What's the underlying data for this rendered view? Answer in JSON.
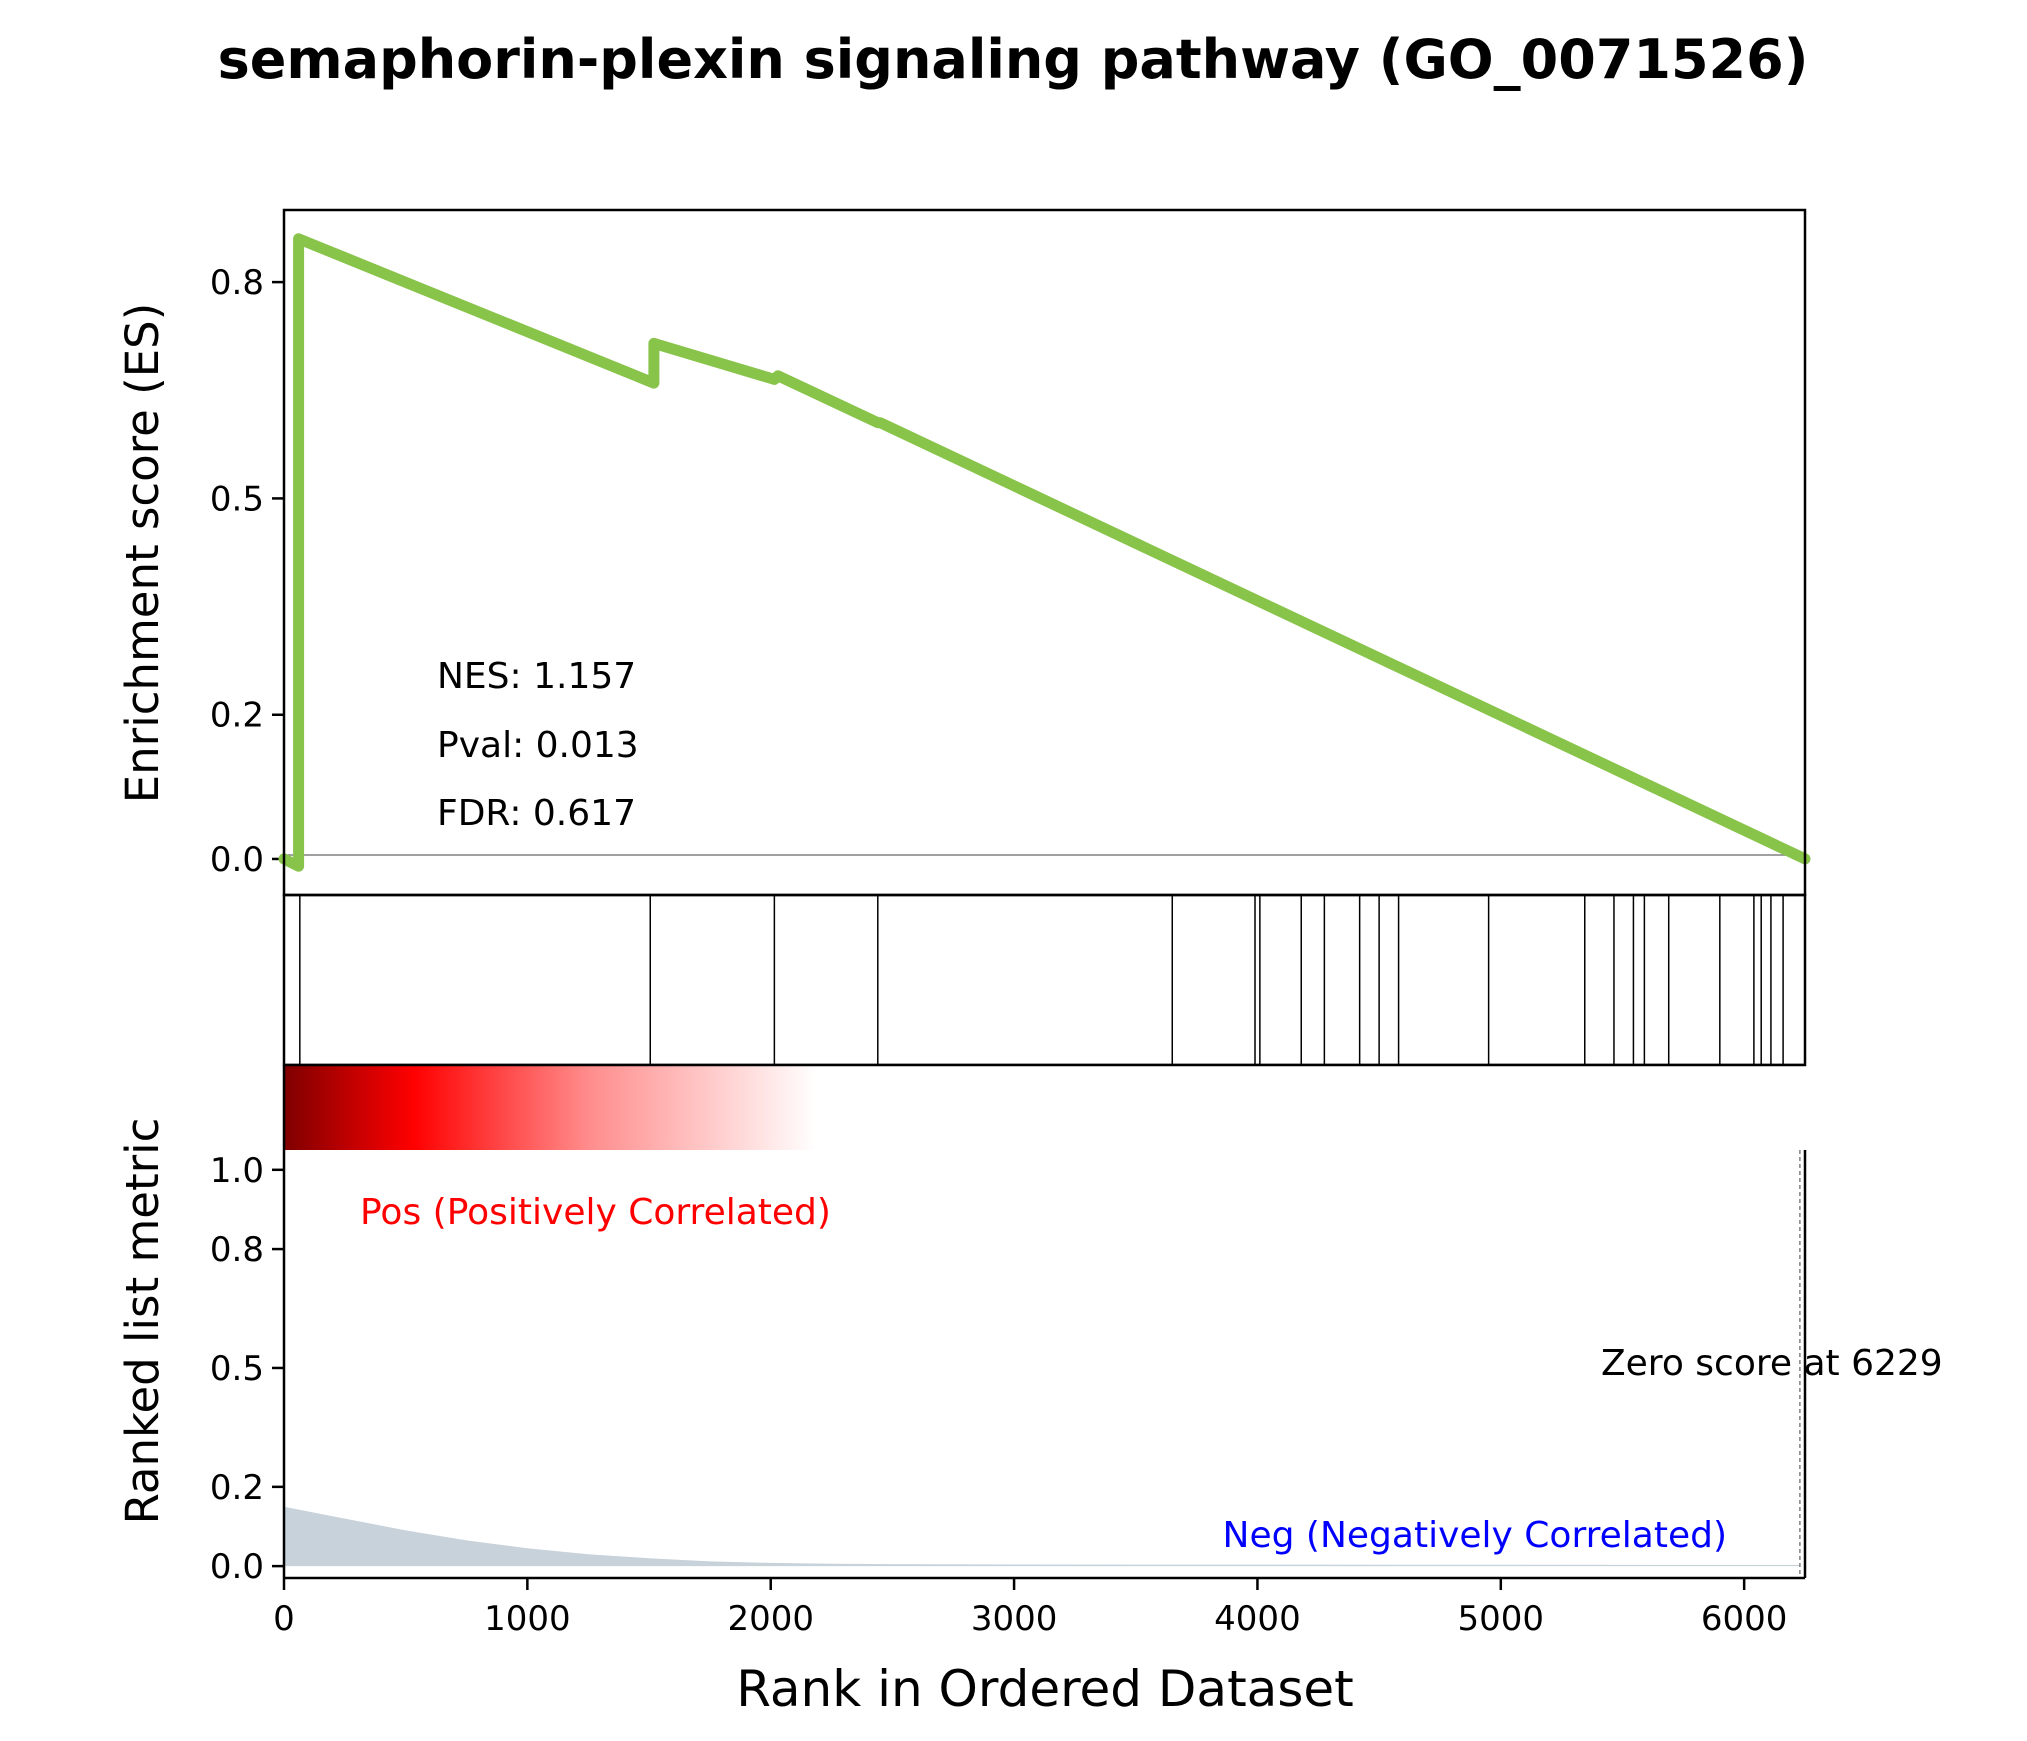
{
  "chart_data": {
    "type": "line",
    "title": "semaphorin-plexin signaling pathway (GO_0071526)",
    "xlabel": "Rank in Ordered Dataset",
    "xlim": [
      0,
      6250
    ],
    "x_ticks": [
      0,
      1000,
      2000,
      3000,
      4000,
      5000,
      6000
    ],
    "es_panel": {
      "ylabel": "Enrichment score (ES)",
      "ylim": [
        -0.05,
        0.9
      ],
      "y_ticks": [
        0.0,
        0.2,
        0.5,
        0.8
      ],
      "y_tick_labels": [
        "0.0",
        "0.2",
        "0.5",
        "0.8"
      ],
      "series": [
        {
          "color": "#88c34a",
          "x": [
            0,
            60,
            60,
            1520,
            1520,
            2015,
            2030,
            2440,
            2450,
            6250
          ],
          "y": [
            0.0,
            -0.01,
            0.86,
            0.66,
            0.715,
            0.665,
            0.67,
            0.605,
            0.605,
            0.0
          ]
        }
      ],
      "annotations": [
        "NES: 1.157",
        "Pval: 0.013",
        "FDR: 0.617"
      ]
    },
    "hits": [
      65,
      1505,
      2015,
      2440,
      3650,
      3990,
      4010,
      4180,
      4275,
      4420,
      4500,
      4580,
      4950,
      5345,
      5465,
      5545,
      5590,
      5690,
      5900,
      6040,
      6070,
      6110,
      6160
    ],
    "metric_panel": {
      "ylabel": "Ranked list metric",
      "ylim": [
        -0.03,
        1.05
      ],
      "y_ticks": [
        0.0,
        0.2,
        0.5,
        0.8,
        1.0
      ],
      "y_tick_labels": [
        "0.0",
        "0.2",
        "0.5",
        "0.8",
        "1.0"
      ],
      "fill_color": "#c8d2da",
      "area": {
        "x": [
          0,
          250,
          500,
          750,
          1000,
          1250,
          1500,
          1750,
          2000,
          2250,
          2500,
          3000,
          6229
        ],
        "y": [
          0.15,
          0.12,
          0.09,
          0.065,
          0.045,
          0.03,
          0.02,
          0.012,
          0.008,
          0.006,
          0.005,
          0.004,
          0.003
        ]
      },
      "zero_score_label": "Zero score at 6229",
      "zero_score_x": 6229,
      "pos_label": "Pos (Positively Correlated)",
      "pos_color": "#ff0000",
      "neg_label": "Neg (Negatively Correlated)",
      "neg_color": "#0000ff"
    },
    "heatmap": {
      "colors": [
        "#7f0000",
        "#ff0000",
        "#ff8c8c",
        "#ffffff"
      ],
      "stops": [
        0,
        0.085,
        0.2,
        0.35
      ]
    }
  }
}
